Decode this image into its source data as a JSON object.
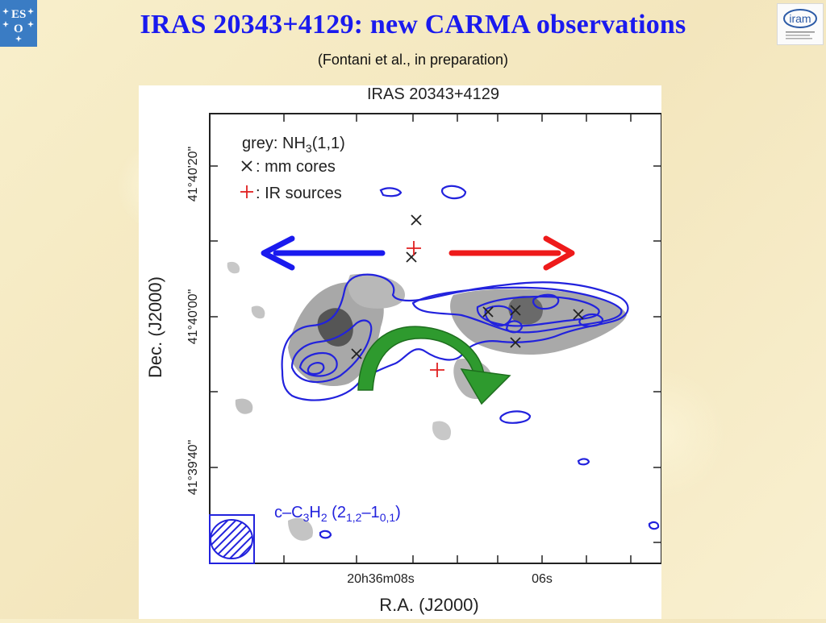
{
  "header": {
    "title": "IRAS 20343+4129: new CARMA observations",
    "subtitle": "(Fontani et al., in preparation)"
  },
  "logos": {
    "left": "ESO",
    "right": "iram"
  },
  "figure": {
    "plot_title": "IRAS 20343+4129",
    "legend": {
      "grey_prefix": "grey: NH",
      "grey_sub": "3",
      "grey_suffix": "(1,1)",
      "mm_cores": ": mm cores",
      "ir_sources": ": IR sources"
    },
    "y_axis_label": "Dec. (J2000)",
    "x_axis_label": "R.A. (J2000)",
    "y_ticks": [
      "41°40'20\"",
      "41°40'00\"",
      "41°39'40\""
    ],
    "x_ticks": [
      "20h36m08s",
      "06s"
    ],
    "contour_label": "c-C3H2 (2_1,2-1_0,1)",
    "colors": {
      "contour": "#2222dd",
      "arrow_left": "#1a1aee",
      "arrow_right": "#ee1a1a",
      "arrow_curved": "#2e9a2e",
      "ir_source": "#e02020",
      "mm_core": "#222222"
    }
  }
}
